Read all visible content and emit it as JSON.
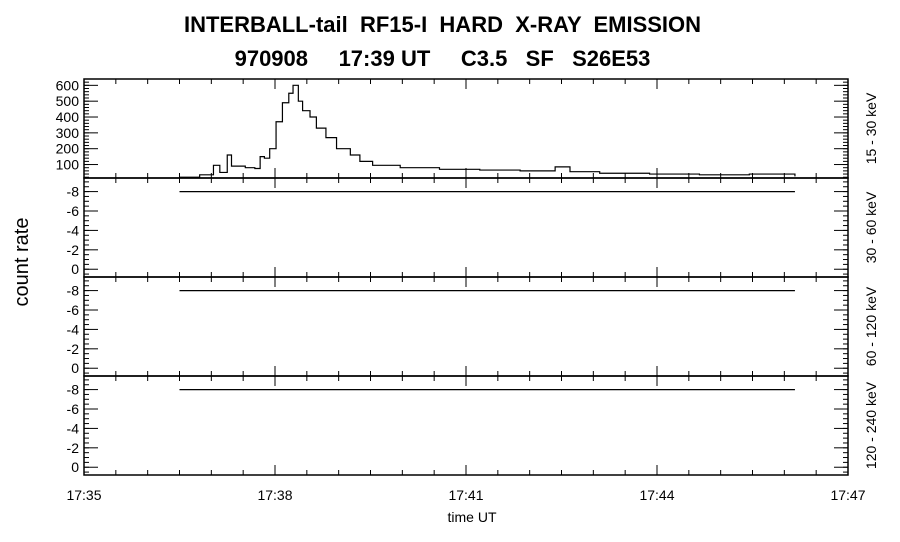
{
  "title_line1": "INTERBALL-tail  RF15-I  HARD  X-RAY  EMISSION",
  "title_line2": "970908     17:39 UT     C3.5   SF   S26E53",
  "chart_data": [
    {
      "type": "line",
      "ylabel_left": "count rate",
      "channel_label": "15 - 30 keV",
      "xlabel": "time UT",
      "xlim": [
        "17:35:00",
        "17:47:00"
      ],
      "xticks": [
        "17:35",
        "17:38",
        "17:41",
        "17:44",
        "17:47"
      ],
      "ylim": [
        15,
        640
      ],
      "yticks": [
        100,
        200,
        300,
        400,
        500,
        600
      ],
      "series": [
        {
          "x": [
            "17:36:30",
            "17:36:49",
            "17:37:02",
            "17:37:08",
            "17:37:15",
            "17:37:19",
            "17:37:32",
            "17:37:41",
            "17:37:46",
            "17:37:50",
            "17:37:55",
            "17:38:01",
            "17:38:07",
            "17:38:13",
            "17:38:17",
            "17:38:22",
            "17:38:26",
            "17:38:33",
            "17:38:39",
            "17:38:48",
            "17:38:58",
            "17:39:11",
            "17:39:20",
            "17:39:32",
            "17:39:58",
            "17:40:35",
            "17:41:13",
            "17:41:51",
            "17:42:24",
            "17:42:38",
            "17:43:06",
            "17:43:53",
            "17:44:40",
            "17:45:27",
            "17:46:10"
          ],
          "y": [
            20,
            35,
            95,
            50,
            160,
            90,
            80,
            75,
            150,
            140,
            200,
            370,
            490,
            550,
            600,
            500,
            440,
            400,
            330,
            270,
            200,
            160,
            120,
            95,
            80,
            70,
            65,
            60,
            85,
            55,
            45,
            40,
            35,
            40,
            25
          ]
        }
      ]
    },
    {
      "type": "line",
      "channel_label": "30 - 60 keV",
      "ylim": [
        0.8,
        -9.4
      ],
      "yticks": [
        -8,
        -6,
        -4,
        -2,
        0
      ],
      "series": [
        {
          "x": [
            "17:36:30",
            "17:46:10"
          ],
          "y": [
            -8,
            -8
          ]
        }
      ]
    },
    {
      "type": "line",
      "channel_label": "60 - 120 keV",
      "ylim": [
        0.8,
        -9.4
      ],
      "yticks": [
        -8,
        -6,
        -4,
        -2,
        0
      ],
      "series": [
        {
          "x": [
            "17:36:30",
            "17:46:10"
          ],
          "y": [
            -8,
            -8
          ]
        }
      ]
    },
    {
      "type": "line",
      "channel_label": "120 - 240 keV",
      "ylim": [
        0.8,
        -9.4
      ],
      "yticks": [
        -8,
        -6,
        -4,
        -2,
        0
      ],
      "series": [
        {
          "x": [
            "17:36:30",
            "17:46:10"
          ],
          "y": [
            -8,
            -8
          ]
        }
      ]
    }
  ]
}
